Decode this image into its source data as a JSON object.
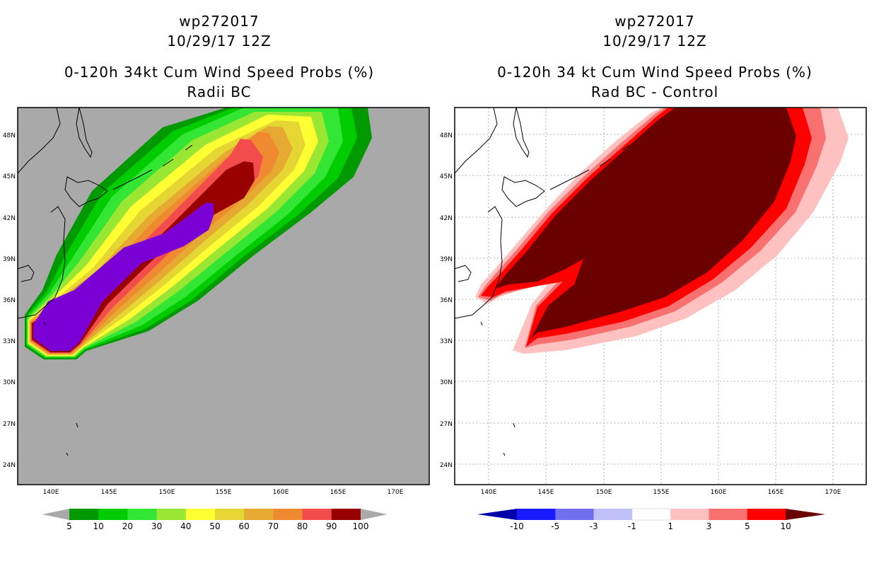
{
  "left": {
    "storm": "wp272017",
    "date": "10/29/17 12Z",
    "title": "0-120h 34kt Cum Wind Speed Probs (%)",
    "subtitle": "Radii BC",
    "colorbar_labels": [
      "5",
      "10",
      "20",
      "30",
      "40",
      "50",
      "60",
      "70",
      "80",
      "90",
      "100"
    ],
    "colorbar_colors": [
      "#009900",
      "#00cc00",
      "#33e633",
      "#99e633",
      "#ffff33",
      "#e6d633",
      "#e6aa33",
      "#f08a30",
      "#f24c4c",
      "#990000",
      "#7a00d6"
    ]
  },
  "right": {
    "storm": "wp272017",
    "date": "10/29/17 12Z",
    "title": "0-120h 34 kt Cum Wind Speed Probs (%)",
    "subtitle": "Rad BC - Control",
    "colorbar_labels": [
      "-10",
      "-5",
      "-3",
      "-1",
      "1",
      "3",
      "5",
      "10"
    ],
    "colorbar_colors": [
      "#0000aa",
      "#1a1aff",
      "#7070f0",
      "#c0c0f8",
      "#ffffff",
      "#ffc0c0",
      "#f87070",
      "#ff0000",
      "#6b0000"
    ]
  },
  "lon_labels": [
    "140E",
    "145E",
    "150E",
    "155E",
    "160E",
    "165E",
    "170E"
  ],
  "lat_labels": [
    "48N",
    "45N",
    "42N",
    "39N",
    "36N",
    "33N",
    "30N",
    "27N",
    "24N"
  ]
}
